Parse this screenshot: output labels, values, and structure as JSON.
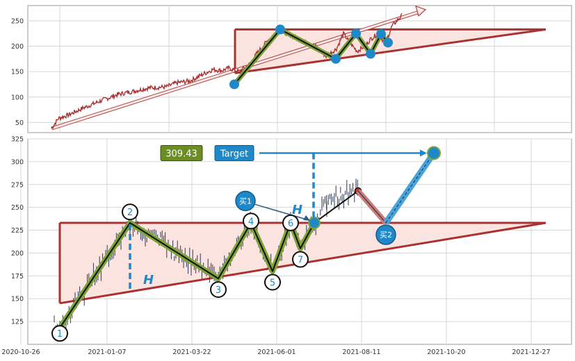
{
  "chart_data": [
    {
      "type": "line",
      "panel": "overview",
      "ylim": [
        30,
        280
      ],
      "yticks": [
        50,
        100,
        150,
        200,
        250
      ],
      "grid": true,
      "series": [
        {
          "role": "price",
          "color": "#a83232",
          "anchors": [
            [
              0,
              38
            ],
            [
              10,
              58
            ],
            [
              25,
              65
            ],
            [
              45,
              78
            ],
            [
              70,
              92
            ],
            [
              95,
              105
            ],
            [
              120,
              112
            ],
            [
              140,
              118
            ],
            [
              165,
              120
            ],
            [
              180,
              128
            ],
            [
              200,
              132
            ],
            [
              218,
              145
            ],
            [
              232,
              154
            ],
            [
              245,
              152
            ],
            [
              255,
              157
            ],
            [
              270,
              150
            ],
            [
              285,
              165
            ],
            [
              295,
              185
            ],
            [
              310,
              210
            ],
            [
              325,
              230
            ],
            [
              340,
              225
            ],
            [
              360,
              210
            ],
            [
              380,
              200
            ],
            [
              395,
              180
            ],
            [
              410,
              195
            ],
            [
              420,
              225
            ],
            [
              430,
              205
            ],
            [
              440,
              190
            ],
            [
              450,
              200
            ],
            [
              460,
              215
            ],
            [
              470,
              225
            ],
            [
              480,
              205
            ],
            [
              490,
              240
            ],
            [
              505,
              262
            ]
          ]
        }
      ],
      "triangle": {
        "apex_price": 233,
        "base_left_price": 147,
        "color": "#a83232",
        "fill": "#fbe3df"
      },
      "pattern_points": [
        [
          263,
          125
        ],
        [
          329,
          233
        ],
        [
          409,
          175
        ],
        [
          438,
          225
        ],
        [
          459,
          185
        ],
        [
          474,
          224
        ],
        [
          484,
          207
        ]
      ],
      "trend_arrow": {
        "from": [
          0,
          38
        ],
        "to": [
          538,
          272
        ]
      }
    },
    {
      "type": "line",
      "panel": "detail",
      "ylim": [
        100,
        325
      ],
      "yticks": [
        125,
        150,
        175,
        200,
        225,
        250,
        275,
        300,
        325
      ],
      "x_tick_labels": [
        "2020-10-26",
        "2021-01-07",
        "2021-03-22",
        "2021-06-01",
        "2021-08-11",
        "2021-10-20",
        "2021-12-27"
      ],
      "grid": true,
      "triangle": {
        "apex_price": 233,
        "base_left_price": 145,
        "color": "#a83232",
        "fill": "#fbe3df"
      },
      "wave_points": [
        {
          "label": "1",
          "price": 118
        },
        {
          "label": "2",
          "price": 233
        },
        {
          "label": "3",
          "price": 172
        },
        {
          "label": "4",
          "price": 233
        },
        {
          "label": "5",
          "price": 180
        },
        {
          "label": "6",
          "price": 233
        },
        {
          "label": "7",
          "price": 205
        }
      ],
      "breakout_price": 233,
      "pullback_high": 268,
      "pullback_low": 233,
      "target_value": 309.43,
      "target_label": "Target",
      "target_value_label": "309.43",
      "height_marker": "H",
      "buy_points": [
        "买1",
        "买2"
      ],
      "colors": {
        "wave": "#7ea33a",
        "wave_core": "#111111",
        "height_line": "#1e88c8",
        "target": "#1e88c8",
        "pullback": "#c97c7c",
        "triangle": "#a83232"
      }
    }
  ]
}
